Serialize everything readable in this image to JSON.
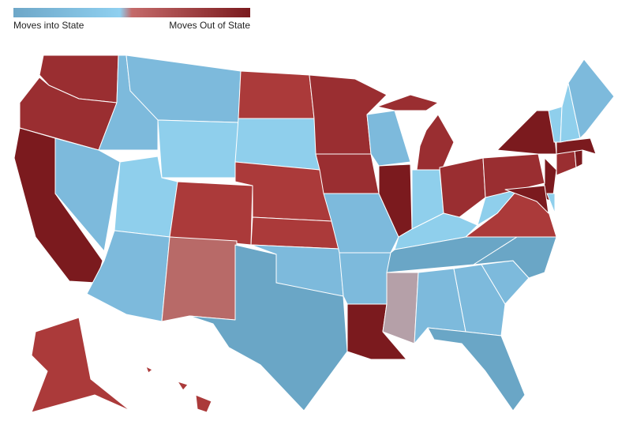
{
  "legend": {
    "left_label": "Moves into State",
    "right_label": "Moves Out of State",
    "colors": [
      "#6ea7c8",
      "#8fd0f0",
      "#c46a6a",
      "#7a1a1e"
    ]
  }
}
